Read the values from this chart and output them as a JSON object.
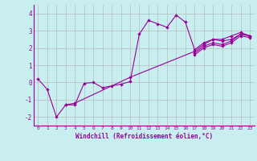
{
  "xlabel": "Windchill (Refroidissement éolien,°C)",
  "bg_color": "#c8eef0",
  "grid_color": "#b0b0b0",
  "line_color": "#990099",
  "xlim": [
    -0.5,
    23.5
  ],
  "ylim": [
    -2.5,
    4.5
  ],
  "xticks": [
    0,
    1,
    2,
    3,
    4,
    5,
    6,
    7,
    8,
    9,
    10,
    11,
    12,
    13,
    14,
    15,
    16,
    17,
    18,
    19,
    20,
    21,
    22,
    23
  ],
  "yticks": [
    -2,
    -1,
    0,
    1,
    2,
    3,
    4
  ],
  "series": [
    [
      0.2,
      -0.4,
      -2.0,
      -1.3,
      -1.3,
      -0.05,
      0.0,
      -0.3,
      -0.2,
      -0.1,
      0.05,
      2.8,
      3.6,
      3.4,
      3.2,
      3.9,
      3.5,
      1.9,
      2.3,
      2.5,
      2.5,
      2.7,
      2.9,
      2.7
    ],
    [
      null,
      null,
      null,
      -1.3,
      -1.2,
      null,
      null,
      null,
      null,
      null,
      0.3,
      null,
      null,
      null,
      null,
      null,
      null,
      1.8,
      2.2,
      2.5,
      2.4,
      2.5,
      2.8,
      2.7
    ],
    [
      null,
      null,
      null,
      null,
      null,
      null,
      null,
      null,
      null,
      null,
      null,
      null,
      null,
      null,
      null,
      null,
      null,
      1.7,
      2.1,
      2.3,
      2.2,
      2.4,
      2.8,
      2.7
    ],
    [
      null,
      null,
      null,
      null,
      null,
      null,
      null,
      null,
      null,
      null,
      null,
      null,
      null,
      null,
      null,
      null,
      null,
      1.6,
      2.0,
      2.2,
      2.1,
      2.3,
      2.7,
      2.6
    ]
  ],
  "figsize": [
    3.2,
    2.0
  ],
  "dpi": 100
}
